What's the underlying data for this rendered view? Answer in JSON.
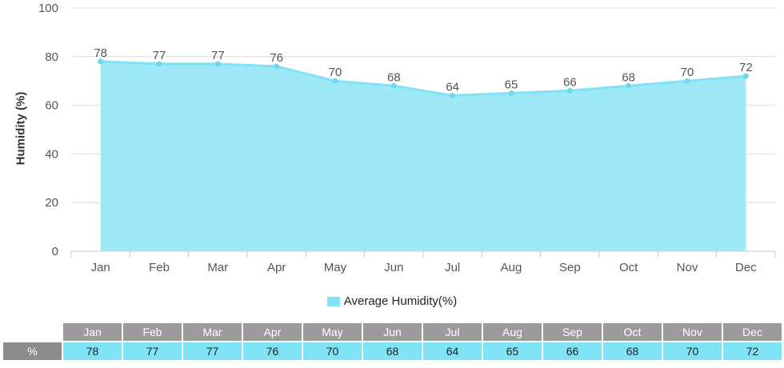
{
  "chart_data": {
    "type": "area",
    "categories": [
      "Jan",
      "Feb",
      "Mar",
      "Apr",
      "May",
      "Jun",
      "Jul",
      "Aug",
      "Sep",
      "Oct",
      "Nov",
      "Dec"
    ],
    "series": [
      {
        "name": "Average Humidity(%)",
        "values": [
          78,
          77,
          77,
          76,
          70,
          68,
          64,
          65,
          66,
          68,
          70,
          72
        ]
      }
    ],
    "ylabel": "Humidity (%)",
    "ylim": [
      0,
      100
    ],
    "yticks": [
      "0",
      "20",
      "40",
      "60",
      "80",
      "100"
    ],
    "grid": true,
    "legend": "bottom-center",
    "fill_color": "#9de9f7",
    "line_color": "#7fe2f5",
    "point_color": "#6fd8ee"
  },
  "table": {
    "row_label": "%"
  }
}
